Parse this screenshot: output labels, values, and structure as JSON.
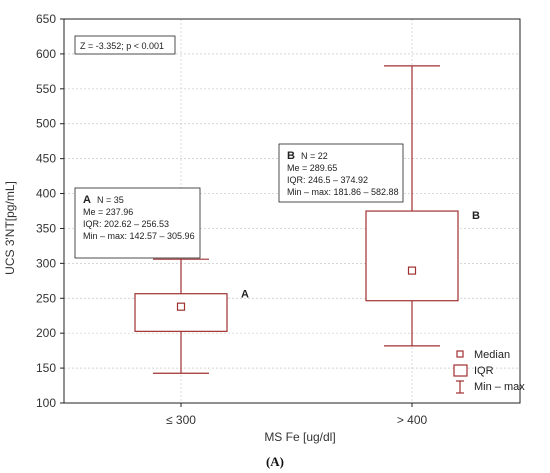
{
  "chart_data": {
    "type": "box",
    "xlabel": "MS Fe [ug/dl]",
    "ylabel": "UCS 3'NT[pg/mL]",
    "ylim": [
      100,
      650
    ],
    "yticks": [
      100,
      150,
      200,
      250,
      300,
      350,
      400,
      450,
      500,
      550,
      600,
      650
    ],
    "stat_text": "Z = -3.352; p < 0.001",
    "panel_label": "(A)",
    "groups": [
      {
        "category": "≤ 300",
        "letter": "A",
        "n_text": "N = 35",
        "median": 237.96,
        "q1": 202.62,
        "q3": 256.53,
        "min": 142.57,
        "max": 305.96,
        "lines": [
          "Me = 237.96",
          "IQR: 202.62 – 256.53",
          "Min – max: 142.57 – 305.96"
        ]
      },
      {
        "category": "> 400",
        "letter": "B",
        "n_text": "N = 22",
        "median": 289.65,
        "q1": 246.5,
        "q3": 374.92,
        "min": 181.86,
        "max": 582.88,
        "lines": [
          "Me = 289.65",
          "IQR: 246.5 – 374.92",
          "Min – max: 181.86 – 582.88"
        ]
      }
    ],
    "legend": {
      "placement": "bottom-right",
      "items": [
        "Median",
        "IQR",
        "Min – max"
      ]
    },
    "colors": {
      "box": "#a03030",
      "frame": "#222222",
      "grid": "#c8c8c8"
    }
  }
}
